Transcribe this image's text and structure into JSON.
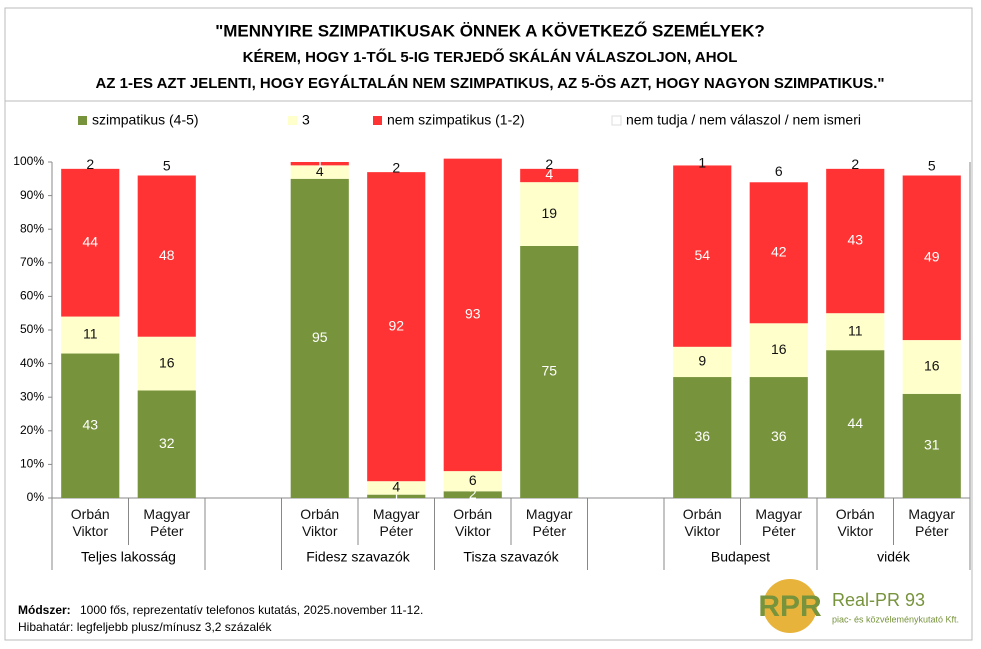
{
  "chart_data": {
    "type": "stacked-bar",
    "title": "\"MENNYIRE SZIMPATIKUSAK ÖNNEK A KÖVETKEZŐ SZEMÉLYEK?",
    "subtitle": [
      "KÉREM, HOGY 1-TŐL 5-IG TERJEDŐ SKÁLÁN VÁLASZOLJON, AHOL",
      "AZ 1-ES AZT JELENTI, HOGY EGYÁLTALÁN NEM SZIMPATIKUS, AZ 5-ÖS AZT, HOGY NAGYON SZIMPATIKUS.\""
    ],
    "categories": [
      "Orbán Viktor",
      "Magyar Péter",
      null,
      "Orbán Viktor",
      "Magyar Péter",
      "Orbán Viktor",
      "Magyar Péter",
      null,
      "Orbán Viktor",
      "Magyar Péter",
      "Orbán Viktor",
      "Magyar Péter"
    ],
    "groups": [
      "Teljes lakosság",
      "Teljes lakosság",
      null,
      "Fidesz szavazók",
      "Fidesz szavazók",
      "Tisza szavazók",
      "Tisza szavazók",
      null,
      "Budapest",
      "Budapest",
      "vidék",
      "vidék"
    ],
    "series": [
      {
        "name": "szimpatikus (4-5)",
        "color": "#77933c",
        "label_color": "#ffffff",
        "values": [
          43,
          32,
          null,
          95,
          1,
          2,
          75,
          null,
          36,
          36,
          44,
          31
        ]
      },
      {
        "name": "3",
        "color": "#ffffcc",
        "label_color": "#111111",
        "values": [
          11,
          16,
          null,
          4,
          4,
          6,
          19,
          null,
          9,
          16,
          11,
          16
        ]
      },
      {
        "name": "nem szimpatikus (1-2)",
        "color": "#ff3333",
        "label_color": "#ffffff",
        "values": [
          44,
          48,
          null,
          1,
          92,
          93,
          4,
          null,
          54,
          42,
          43,
          49
        ]
      },
      {
        "name": "nem tudja / nem válaszol / nem ismeri",
        "color": "#ffffff",
        "label_color": "#111111",
        "values": [
          2,
          5,
          null,
          null,
          2,
          null,
          2,
          null,
          1,
          6,
          2,
          5
        ]
      }
    ],
    "ylim": [
      0,
      100
    ],
    "yticks": [
      {
        "value": 0,
        "label": "0%"
      },
      {
        "value": 10,
        "label": "10%"
      },
      {
        "value": 20,
        "label": "20%"
      },
      {
        "value": 30,
        "label": "30%"
      },
      {
        "value": 40,
        "label": "40%"
      },
      {
        "value": 50,
        "label": "50%"
      },
      {
        "value": 60,
        "label": "60%"
      },
      {
        "value": 70,
        "label": "70%"
      },
      {
        "value": 80,
        "label": "80%"
      },
      {
        "value": 90,
        "label": "90%"
      },
      {
        "value": 100,
        "label": "100%"
      }
    ],
    "grid": false
  },
  "footer": {
    "method_label": "Módszer:",
    "method_text": "1000 fős, reprezentatív telefonos kutatás, 2025.november 11-12.",
    "error_note": "Hibahatár: legfeljebb plusz/mínusz 3,2 százalék"
  },
  "logo": {
    "mark": "RPR",
    "name": "Real-PR 93",
    "tagline": "piac- és közvéleménykutató Kft."
  }
}
